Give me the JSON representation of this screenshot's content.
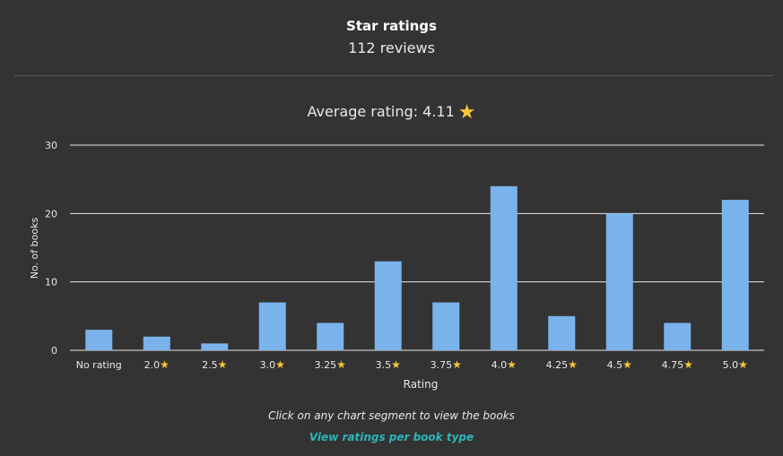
{
  "header": {
    "title": "Star ratings",
    "subtitle": "112 reviews"
  },
  "average": {
    "label": "Average rating: 4.11",
    "icon": "star-icon"
  },
  "chart_data": {
    "type": "bar",
    "categories": [
      "No rating",
      "2.0",
      "2.5",
      "3.0",
      "3.25",
      "3.5",
      "3.75",
      "4.0",
      "4.25",
      "4.5",
      "4.75",
      "5.0"
    ],
    "category_icon": "star-icon",
    "values": [
      3,
      2,
      1,
      7,
      4,
      13,
      7,
      24,
      5,
      20,
      4,
      22
    ],
    "xlabel": "Rating",
    "ylabel": "No. of books",
    "ylim": [
      0,
      30
    ],
    "yticks": [
      0,
      10,
      20,
      30
    ],
    "grid": true,
    "bar_color": "#7ab3ec",
    "grid_color": "#e6e6e6",
    "star_color": "#f8c53a"
  },
  "footer": {
    "note": "Click on any chart segment to view the books",
    "link": "View ratings per book type",
    "link_color": "#2bb5b8"
  }
}
